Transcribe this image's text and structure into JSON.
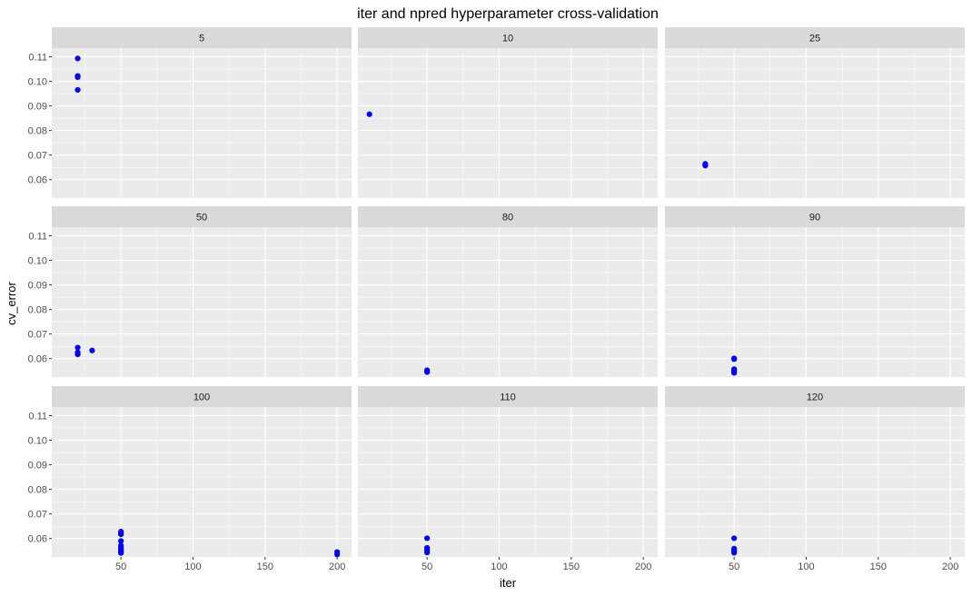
{
  "chart_data": {
    "type": "scatter",
    "title": "iter and npred hyperparameter cross-validation",
    "xlabel": "iter",
    "ylabel": "cv_error",
    "xlim": [
      2,
      210
    ],
    "ylim": [
      0.0525,
      0.1135
    ],
    "x_ticks": [
      50,
      100,
      150,
      200
    ],
    "x_tick_labels": [
      "50",
      "100",
      "150",
      "200"
    ],
    "y_ticks": [
      0.06,
      0.07,
      0.08,
      0.09,
      0.1,
      0.11
    ],
    "y_tick_labels": [
      "0.06",
      "0.07",
      "0.08",
      "0.09",
      "0.10",
      "0.11"
    ],
    "point_color": "#0000ff",
    "panel_bg": "#ebebeb",
    "strip_bg": "#d9d9d9",
    "grid": true,
    "layout": {
      "rows": 3,
      "cols": 3
    },
    "facets": [
      {
        "label": "5",
        "points": [
          [
            20,
            0.1093
          ],
          [
            20,
            0.1022
          ],
          [
            20,
            0.1017
          ],
          [
            20,
            0.0965
          ]
        ]
      },
      {
        "label": "10",
        "points": [
          [
            10,
            0.0866
          ]
        ]
      },
      {
        "label": "25",
        "points": [
          [
            30,
            0.0664
          ],
          [
            30,
            0.066
          ],
          [
            30,
            0.0657
          ]
        ]
      },
      {
        "label": "50",
        "points": [
          [
            20,
            0.0645
          ],
          [
            20,
            0.0625
          ],
          [
            20,
            0.0617
          ],
          [
            30,
            0.0633
          ]
        ]
      },
      {
        "label": "80",
        "points": [
          [
            50,
            0.0553
          ],
          [
            50,
            0.0548
          ],
          [
            50,
            0.0545
          ]
        ]
      },
      {
        "label": "90",
        "points": [
          [
            50,
            0.0601
          ],
          [
            50,
            0.0598
          ],
          [
            50,
            0.0557
          ],
          [
            50,
            0.0552
          ],
          [
            50,
            0.0546
          ],
          [
            50,
            0.0542
          ]
        ]
      },
      {
        "label": "100",
        "points": [
          [
            50,
            0.0628
          ],
          [
            50,
            0.0622
          ],
          [
            50,
            0.0617
          ],
          [
            50,
            0.059
          ],
          [
            50,
            0.0571
          ],
          [
            50,
            0.0563
          ],
          [
            50,
            0.0557
          ],
          [
            50,
            0.055
          ],
          [
            50,
            0.0545
          ],
          [
            50,
            0.0541
          ],
          [
            200,
            0.0545
          ],
          [
            200,
            0.0535
          ]
        ]
      },
      {
        "label": "110",
        "points": [
          [
            50,
            0.0601
          ],
          [
            50,
            0.0562
          ],
          [
            50,
            0.0555
          ],
          [
            50,
            0.0548
          ],
          [
            50,
            0.0543
          ]
        ]
      },
      {
        "label": "120",
        "points": [
          [
            50,
            0.0601
          ],
          [
            50,
            0.0559
          ],
          [
            50,
            0.0553
          ],
          [
            50,
            0.0548
          ],
          [
            50,
            0.0542
          ]
        ]
      }
    ]
  }
}
